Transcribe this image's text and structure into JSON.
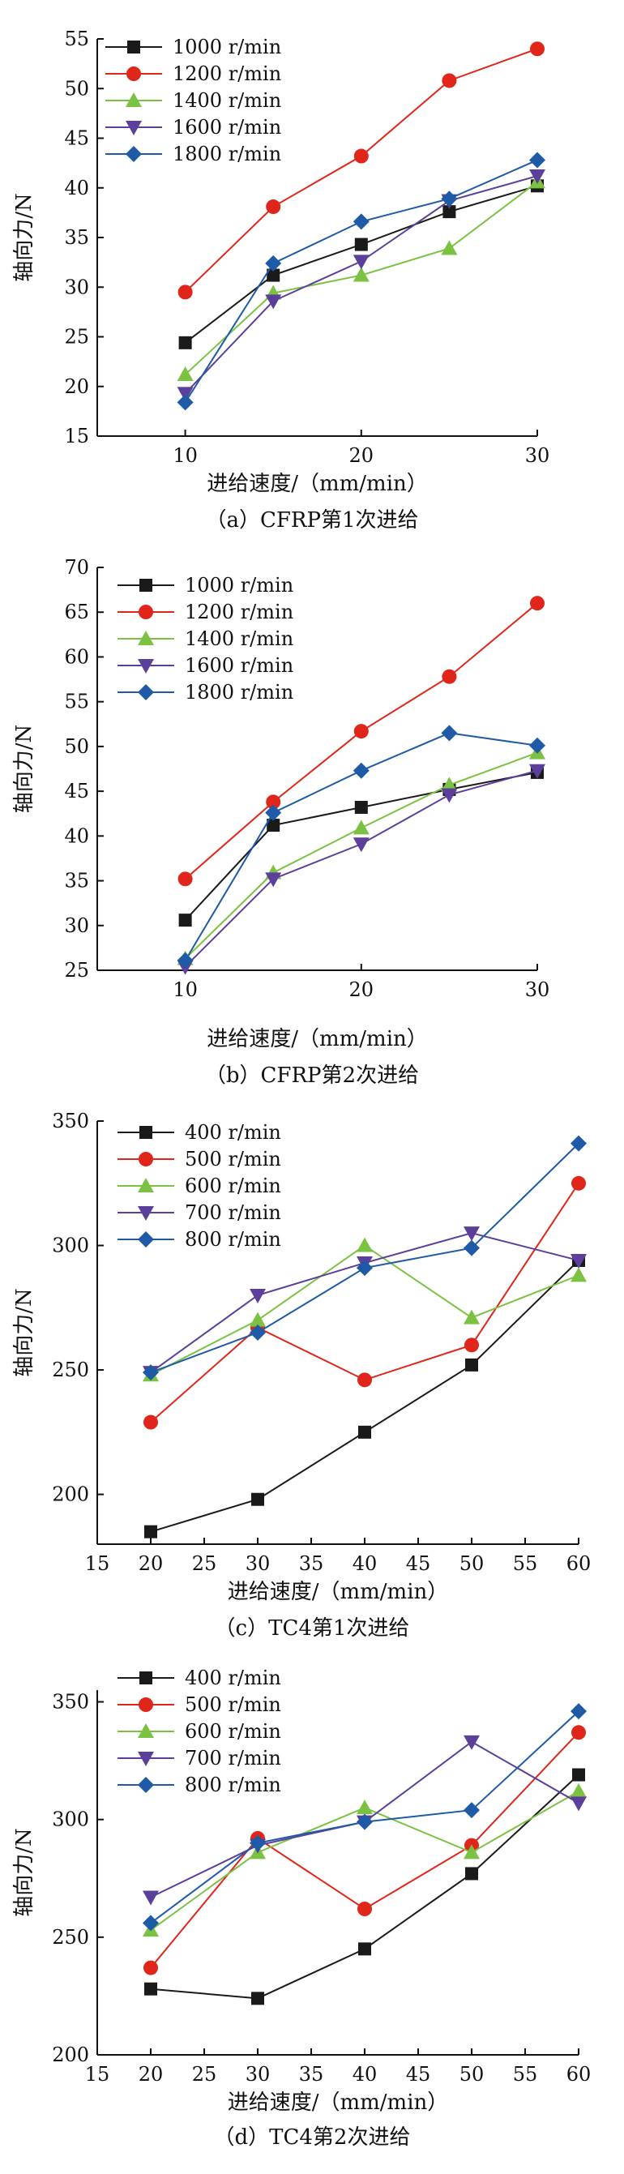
{
  "chart_data": [
    {
      "type": "line",
      "caption": "（a）CFRP第1次进给",
      "xlabel": "进给速度/（mm/min）",
      "ylabel": "轴向力/N",
      "xlim": [
        5,
        30
      ],
      "ylim": [
        15,
        55
      ],
      "xticks": [
        10,
        20,
        30
      ],
      "yticks": [
        15,
        20,
        25,
        30,
        35,
        40,
        45,
        50,
        55
      ],
      "legend": "top-left",
      "grid": false,
      "x": [
        10,
        15,
        20,
        25,
        30
      ],
      "series": [
        {
          "name": "1000 r/min",
          "color": "#1a1a1a",
          "marker": "square",
          "values": [
            24.4,
            31.2,
            34.3,
            37.6,
            40.2
          ]
        },
        {
          "name": "1200 r/min",
          "color": "#e0261b",
          "marker": "circle",
          "values": [
            29.5,
            38.1,
            43.2,
            50.8,
            54.0
          ]
        },
        {
          "name": "1400 r/min",
          "color": "#7cc242",
          "marker": "triangle-up",
          "values": [
            21.2,
            29.4,
            31.2,
            33.9,
            40.6
          ]
        },
        {
          "name": "1600 r/min",
          "color": "#5b3f9a",
          "marker": "triangle-down",
          "values": [
            19.3,
            28.6,
            32.6,
            38.7,
            41.2
          ]
        },
        {
          "name": "1800 r/min",
          "color": "#1f5aa6",
          "marker": "diamond",
          "values": [
            18.4,
            32.4,
            36.6,
            38.9,
            42.8
          ]
        }
      ]
    },
    {
      "type": "line",
      "caption": "（b）CFRP第2次进给",
      "xlabel": "进给速度/（mm/min）",
      "ylabel": "轴向力/N",
      "xlim": [
        5,
        30
      ],
      "ylim": [
        25,
        70
      ],
      "xticks": [
        10,
        20,
        30
      ],
      "yticks": [
        25,
        30,
        35,
        40,
        45,
        50,
        55,
        60,
        65,
        70
      ],
      "legend": "top-left",
      "grid": false,
      "x": [
        10,
        15,
        20,
        25,
        30
      ],
      "series": [
        {
          "name": "1000 r/min",
          "color": "#1a1a1a",
          "marker": "square",
          "values": [
            30.6,
            41.2,
            43.2,
            45.2,
            47.1
          ]
        },
        {
          "name": "1200 r/min",
          "color": "#e0261b",
          "marker": "circle",
          "values": [
            35.2,
            43.8,
            51.7,
            57.8,
            66.0
          ]
        },
        {
          "name": "1400 r/min",
          "color": "#7cc242",
          "marker": "triangle-up",
          "values": [
            26.3,
            35.9,
            40.9,
            45.7,
            49.3
          ]
        },
        {
          "name": "1600 r/min",
          "color": "#5b3f9a",
          "marker": "triangle-down",
          "values": [
            25.4,
            35.2,
            39.1,
            44.6,
            47.3
          ]
        },
        {
          "name": "1800 r/min",
          "color": "#1f5aa6",
          "marker": "diamond",
          "values": [
            26.1,
            42.6,
            47.3,
            51.5,
            50.1
          ]
        }
      ]
    },
    {
      "type": "line",
      "caption": "（c）TC4第1次进给",
      "xlabel": "进给速度/（mm/min）",
      "ylabel": "轴向力/N",
      "xlim": [
        15,
        60
      ],
      "ylim": [
        180,
        350
      ],
      "xticks": [
        15,
        20,
        25,
        30,
        35,
        40,
        45,
        50,
        55,
        60
      ],
      "yticks": [
        200,
        250,
        300,
        350
      ],
      "legend": "top-left",
      "grid": false,
      "x": [
        20,
        30,
        40,
        50,
        60
      ],
      "series": [
        {
          "name": "400 r/min",
          "color": "#1a1a1a",
          "marker": "square",
          "values": [
            185,
            198,
            225,
            252,
            294
          ]
        },
        {
          "name": "500 r/min",
          "color": "#e0261b",
          "marker": "circle",
          "values": [
            229,
            267,
            246,
            260,
            325
          ]
        },
        {
          "name": "600 r/min",
          "color": "#7cc242",
          "marker": "triangle-up",
          "values": [
            248,
            270,
            300,
            271,
            288
          ]
        },
        {
          "name": "700 r/min",
          "color": "#5b3f9a",
          "marker": "triangle-down",
          "values": [
            249,
            280,
            293,
            305,
            294
          ]
        },
        {
          "name": "800 r/min",
          "color": "#1f5aa6",
          "marker": "diamond",
          "values": [
            249,
            265,
            291,
            299,
            341
          ]
        }
      ]
    },
    {
      "type": "line",
      "caption": "（d）TC4第2次进给",
      "xlabel": "进给速度/（mm/min）",
      "ylabel": "轴向力/N",
      "xlim": [
        15,
        60
      ],
      "ylim": [
        200,
        355
      ],
      "xticks": [
        15,
        20,
        25,
        30,
        35,
        40,
        45,
        50,
        55,
        60
      ],
      "yticks": [
        200,
        250,
        300,
        350
      ],
      "legend": "top-left",
      "grid": false,
      "x": [
        20,
        30,
        40,
        50,
        60
      ],
      "series": [
        {
          "name": "400 r/min",
          "color": "#1a1a1a",
          "marker": "square",
          "values": [
            228,
            224,
            245,
            277,
            319
          ]
        },
        {
          "name": "500 r/min",
          "color": "#e0261b",
          "marker": "circle",
          "values": [
            237,
            292,
            262,
            289,
            337
          ]
        },
        {
          "name": "600 r/min",
          "color": "#7cc242",
          "marker": "triangle-up",
          "values": [
            253,
            286,
            305,
            286,
            312
          ]
        },
        {
          "name": "700 r/min",
          "color": "#5b3f9a",
          "marker": "triangle-down",
          "values": [
            267,
            289,
            299,
            333,
            307
          ]
        },
        {
          "name": "800 r/min",
          "color": "#1f5aa6",
          "marker": "diamond",
          "values": [
            256,
            290,
            299,
            304,
            346
          ]
        }
      ]
    }
  ]
}
